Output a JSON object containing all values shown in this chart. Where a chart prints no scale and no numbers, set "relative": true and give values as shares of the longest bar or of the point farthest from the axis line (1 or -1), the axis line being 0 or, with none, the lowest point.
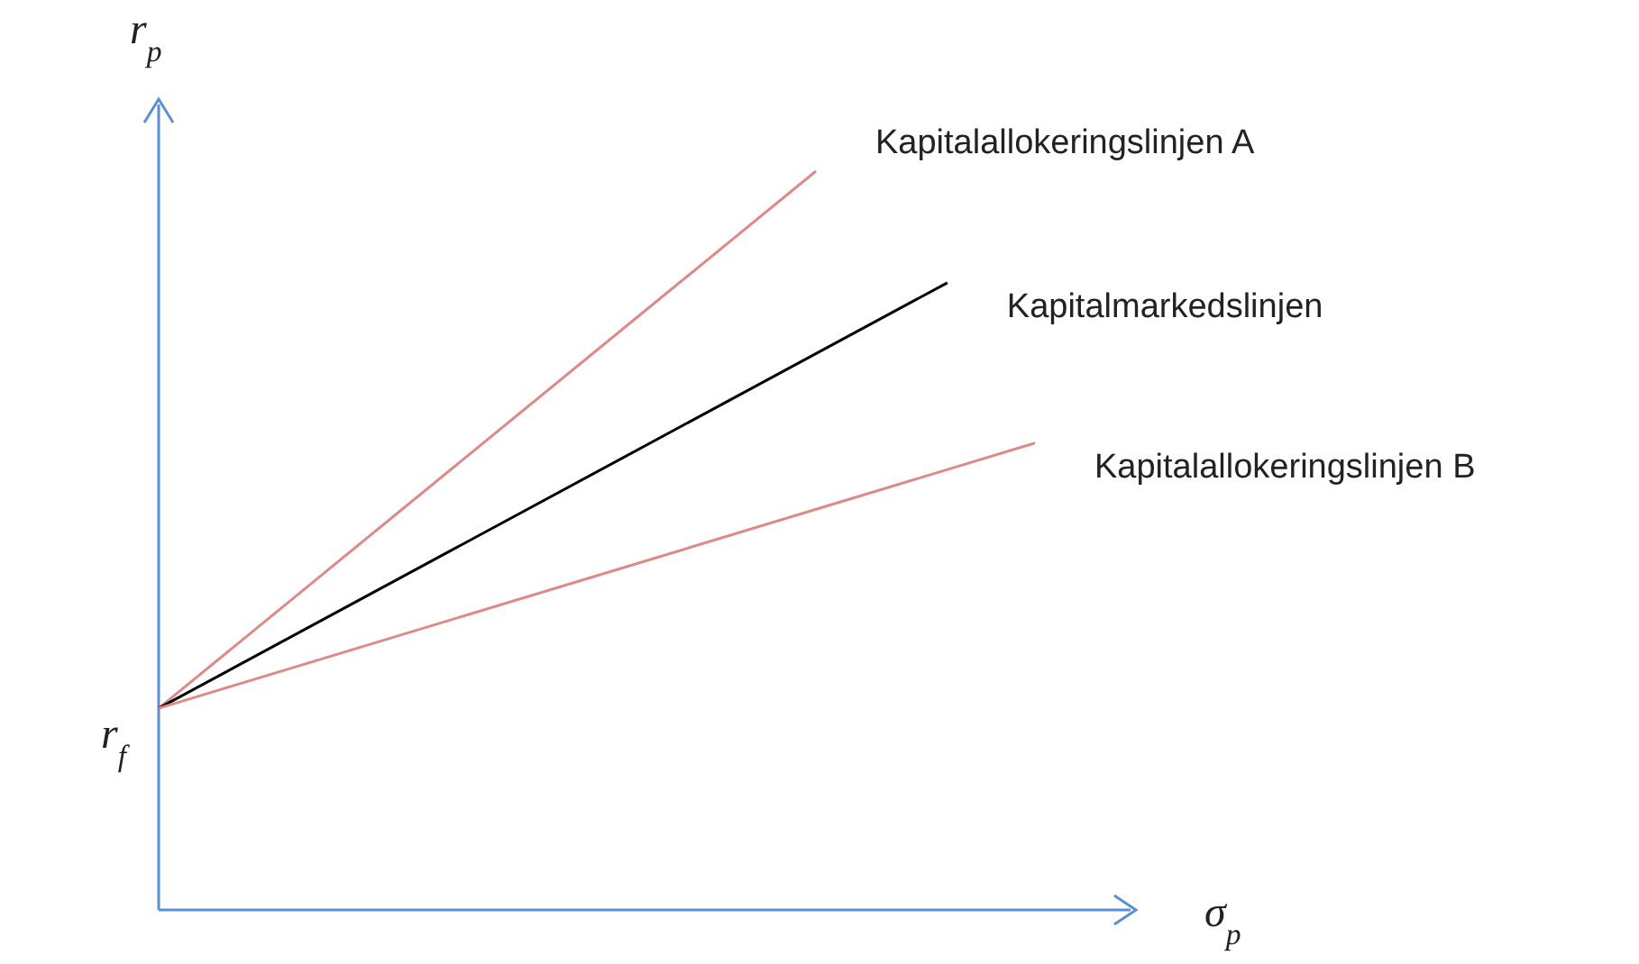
{
  "chart_data": {
    "type": "line",
    "relative": true,
    "xlabel": "σ$_{p}$",
    "ylabel": "r$_{p}$",
    "marker": "none",
    "line_style": "solid",
    "categories": [
      null,
      null,
      null,
      null,
      null,
      null,
      null,
      null,
      null,
      null,
      null,
      null,
      null,
      null,
      null,
      null,
      null,
      null,
      null,
      null,
      null
    ],
    "annotations": [
      "r$_{f}$"
    ],
    "series": [
      {
        "name": "Kapitalallokeringslinjen A",
        "color": "#dc8a8a",
        "values": [
          0.273,
          null,
          null,
          null,
          null,
          null,
          null,
          null,
          null,
          null,
          null,
          null,
          null,
          null,
          null,
          1,
          null,
          null,
          null,
          null,
          null
        ]
      },
      {
        "name": "Kapitalmarkedslinjen",
        "color": "#000000",
        "values": [
          0.273,
          null,
          null,
          null,
          null,
          null,
          null,
          null,
          null,
          null,
          null,
          null,
          null,
          null,
          null,
          null,
          null,
          null,
          0.849,
          null,
          null
        ]
      },
      {
        "name": "Kapitalallokeringslinjen B",
        "color": "#dc8a8a",
        "values": [
          0.273,
          null,
          null,
          null,
          null,
          null,
          null,
          null,
          null,
          null,
          null,
          null,
          null,
          null,
          null,
          null,
          null,
          null,
          null,
          null,
          0.632
        ]
      }
    ]
  }
}
